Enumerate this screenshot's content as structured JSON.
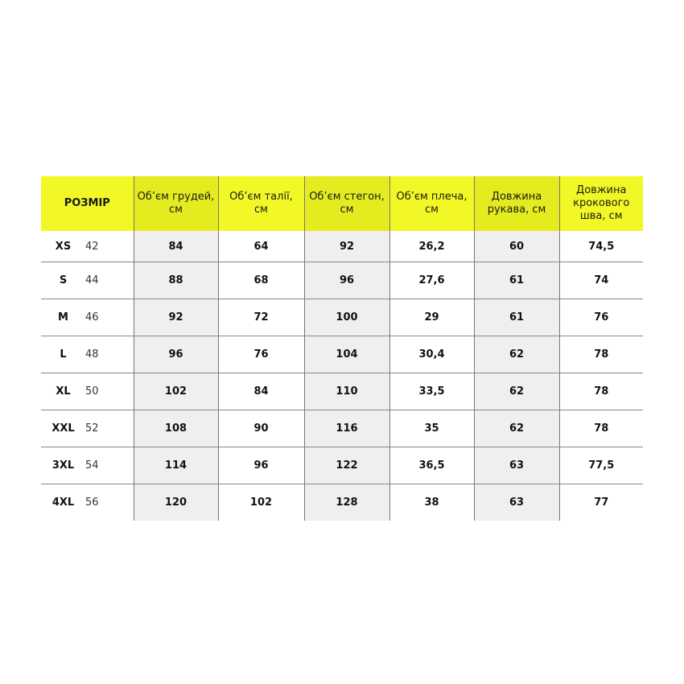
{
  "colors": {
    "header": "#f1f825",
    "header_shaded": "#e4ec1f",
    "shaded": "#efefef"
  },
  "headers": [
    "РОЗМІР",
    "Об’єм грудей, см",
    "Об’єм талії, см",
    "Об’єм стегон, см",
    "Об’єм плеча, см",
    "Довжина рукава, см",
    "Довжина крокового шва, см"
  ],
  "rows": [
    {
      "size": "XS",
      "num": "42",
      "values": [
        "84",
        "64",
        "92",
        "26,2",
        "60",
        "74,5"
      ]
    },
    {
      "size": "S",
      "num": "44",
      "values": [
        "88",
        "68",
        "96",
        "27,6",
        "61",
        "74"
      ]
    },
    {
      "size": "M",
      "num": "46",
      "values": [
        "92",
        "72",
        "100",
        "29",
        "61",
        "76"
      ]
    },
    {
      "size": "L",
      "num": "48",
      "values": [
        "96",
        "76",
        "104",
        "30,4",
        "62",
        "78"
      ]
    },
    {
      "size": "XL",
      "num": "50",
      "values": [
        "102",
        "84",
        "110",
        "33,5",
        "62",
        "78"
      ]
    },
    {
      "size": "XXL",
      "num": "52",
      "values": [
        "108",
        "90",
        "116",
        "35",
        "62",
        "78"
      ]
    },
    {
      "size": "3XL",
      "num": "54",
      "values": [
        "114",
        "96",
        "122",
        "36,5",
        "63",
        "77,5"
      ]
    },
    {
      "size": "4XL",
      "num": "56",
      "values": [
        "120",
        "102",
        "128",
        "38",
        "63",
        "77"
      ]
    }
  ]
}
